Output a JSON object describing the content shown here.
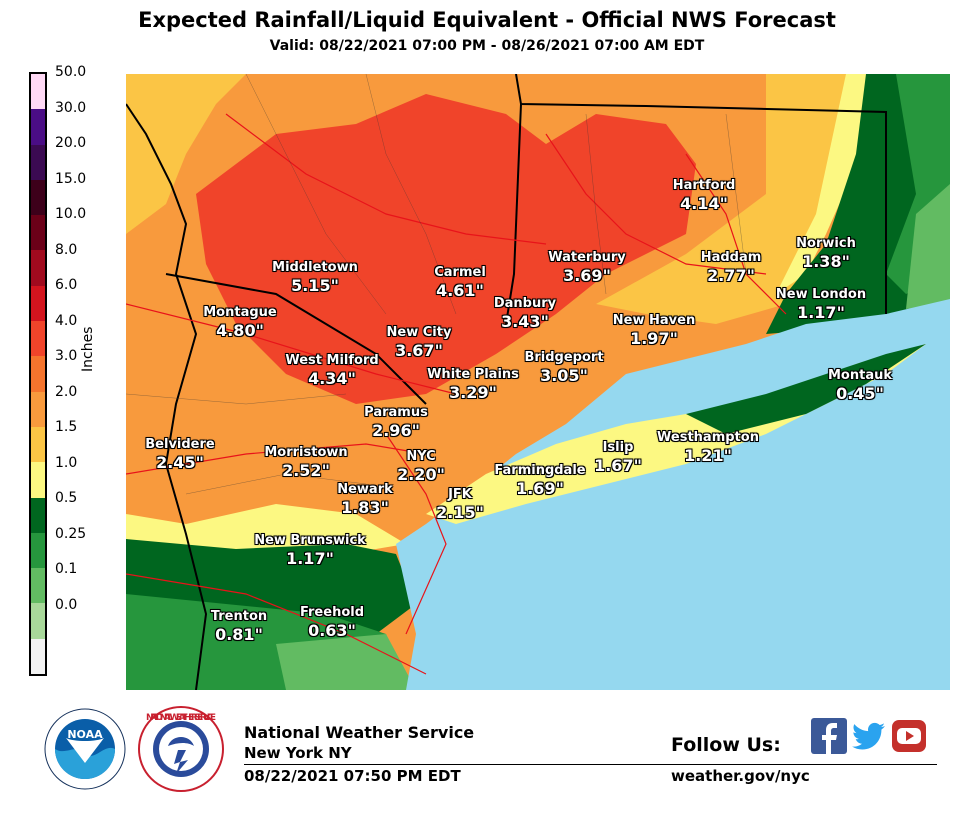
{
  "title": "Expected Rainfall/Liquid Equivalent - Official NWS Forecast",
  "subtitle": "Valid: 08/22/2021 07:00 PM - 08/26/2021 07:00 AM EDT",
  "legend": {
    "units": "Inches",
    "labels": [
      "50.0",
      "30.0",
      "20.0",
      "15.0",
      "10.0",
      "8.0",
      "6.0",
      "4.0",
      "3.0",
      "2.0",
      "1.5",
      "1.0",
      "0.5",
      "0.25",
      "0.1",
      "0.0"
    ],
    "colors": [
      "#ffd9f5",
      "#4a0d85",
      "#3b0a52",
      "#3d001a",
      "#6b0018",
      "#a00a1e",
      "#d3141e",
      "#f0442a",
      "#f5742d",
      "#f89a3d",
      "#fbc545",
      "#fcf882",
      "#00661f",
      "#26963d",
      "#62bb62",
      "#a8d89a",
      "#f2f2f2"
    ]
  },
  "map": {
    "ocean_color": "#95d8ef",
    "cities": [
      {
        "name": "Middletown",
        "value": "5.15\""
      },
      {
        "name": "Carmel",
        "value": "4.61\""
      },
      {
        "name": "Waterbury",
        "value": "3.69\""
      },
      {
        "name": "Hartford",
        "value": "4.14\""
      },
      {
        "name": "Haddam",
        "value": "2.77\""
      },
      {
        "name": "Norwich",
        "value": "1.38\""
      },
      {
        "name": "Montague",
        "value": "4.80\""
      },
      {
        "name": "Danbury",
        "value": "3.43\""
      },
      {
        "name": "New London",
        "value": "1.17\""
      },
      {
        "name": "New City",
        "value": "3.67\""
      },
      {
        "name": "New Haven",
        "value": "1.97\""
      },
      {
        "name": "West Milford",
        "value": "4.34\""
      },
      {
        "name": "Bridgeport",
        "value": "3.05\""
      },
      {
        "name": "White Plains",
        "value": "3.29\""
      },
      {
        "name": "Montauk",
        "value": "0.45\""
      },
      {
        "name": "Paramus",
        "value": "2.96\""
      },
      {
        "name": "Belvidere",
        "value": "2.45\""
      },
      {
        "name": "Morristown",
        "value": "2.52\""
      },
      {
        "name": "NYC",
        "value": "2.20\""
      },
      {
        "name": "Westhampton",
        "value": "1.21\""
      },
      {
        "name": "Islip",
        "value": "1.67\""
      },
      {
        "name": "Farmingdale",
        "value": "1.69\""
      },
      {
        "name": "Newark",
        "value": "1.83\""
      },
      {
        "name": "JFK",
        "value": "2.15\""
      },
      {
        "name": "New Brunswick",
        "value": "1.17\""
      },
      {
        "name": "Trenton",
        "value": "0.81\""
      },
      {
        "name": "Freehold",
        "value": "0.63\""
      }
    ]
  },
  "footer": {
    "office": "National Weather Service",
    "location": "New York NY",
    "issued": "08/22/2021 07:50 PM EDT",
    "follow": "Follow Us:",
    "url": "weather.gov/nyc",
    "noaa_logo_text": "NOAA",
    "nws_logo_text": "NATIONAL WEATHER SERVICE"
  }
}
